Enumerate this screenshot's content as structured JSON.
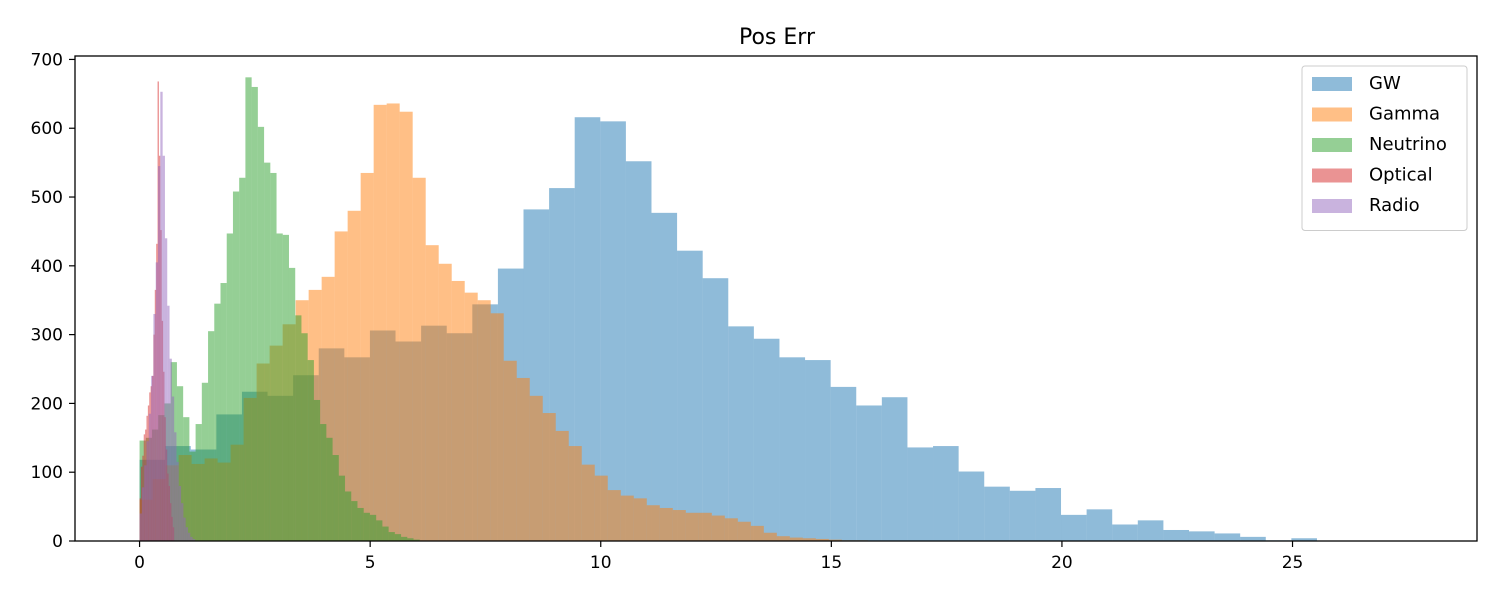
{
  "chart_data": {
    "type": "histogram",
    "title": "Pos Err",
    "xlabel": "",
    "ylabel": "",
    "xlim": [
      -1.4,
      29.0
    ],
    "ylim": [
      0,
      705
    ],
    "xticks": [
      0,
      5,
      10,
      15,
      20,
      25
    ],
    "yticks": [
      0,
      100,
      200,
      300,
      400,
      500,
      600,
      700
    ],
    "grid": false,
    "legend_position": "top-right",
    "series": [
      {
        "name": "GW",
        "color": "#1f77b4",
        "alpha": 0.5,
        "bin_start": 0.0,
        "bin_width": 0.555,
        "counts": [
          118,
          138,
          133,
          184,
          217,
          211,
          241,
          280,
          267,
          306,
          290,
          313,
          302,
          344,
          396,
          482,
          513,
          616,
          610,
          552,
          477,
          422,
          382,
          312,
          294,
          267,
          263,
          224,
          197,
          209,
          136,
          138,
          101,
          79,
          73,
          77,
          38,
          46,
          24,
          30,
          16,
          14,
          11,
          6,
          1,
          4,
          0,
          0,
          0,
          0
        ]
      },
      {
        "name": "Gamma",
        "color": "#ff7f0e",
        "alpha": 0.5,
        "bin_start": 0.0,
        "bin_width": 0.282,
        "counts": [
          60,
          90,
          110,
          125,
          112,
          120,
          114,
          140,
          208,
          258,
          284,
          315,
          350,
          365,
          384,
          450,
          480,
          535,
          634,
          636,
          624,
          528,
          430,
          403,
          378,
          361,
          350,
          331,
          262,
          237,
          211,
          186,
          160,
          138,
          111,
          95,
          74,
          66,
          62,
          52,
          48,
          45,
          41,
          41,
          37,
          33,
          28,
          22,
          12,
          7,
          5,
          4,
          3,
          2,
          1,
          1
        ]
      },
      {
        "name": "Neutrino",
        "color": "#2ca02c",
        "alpha": 0.5,
        "bin_start": 0.0,
        "bin_width": 0.135,
        "counts": [
          146,
          150,
          162,
          183,
          200,
          260,
          225,
          180,
          130,
          170,
          230,
          305,
          345,
          375,
          447,
          508,
          528,
          674,
          660,
          602,
          550,
          535,
          447,
          445,
          397,
          328,
          302,
          263,
          205,
          170,
          150,
          125,
          95,
          72,
          58,
          48,
          41,
          38,
          30,
          21,
          13,
          10,
          6,
          4,
          2
        ]
      },
      {
        "name": "Optical",
        "color": "#d62728",
        "alpha": 0.5,
        "bin_start": 0.0,
        "bin_width": 0.03,
        "counts": [
          62,
          108,
          124,
          155,
          162,
          182,
          197,
          216,
          225,
          240,
          300,
          365,
          432,
          668,
          560,
          452,
          320,
          246,
          180,
          133,
          98,
          80,
          55,
          35,
          20
        ]
      },
      {
        "name": "Radio",
        "color": "#9467bd",
        "alpha": 0.5,
        "bin_start": 0.0,
        "bin_width": 0.05,
        "counts": [
          40,
          78,
          110,
          145,
          185,
          240,
          330,
          405,
          545,
          653,
          560,
          440,
          342,
          265,
          210,
          158,
          115,
          80,
          55,
          34,
          20,
          12,
          6,
          3
        ]
      }
    ]
  }
}
